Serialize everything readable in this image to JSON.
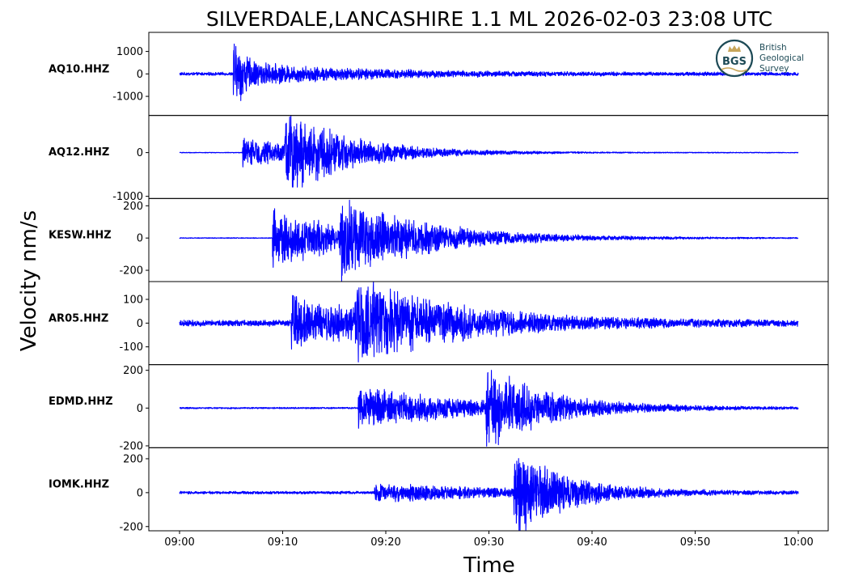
{
  "chart_data": {
    "type": "line",
    "title": "SILVERDALE,LANCASHIRE 1.1 ML   2026-02-03 23:08 UTC",
    "xlabel": "Time",
    "ylabel": "Velocity nm/s",
    "x_ticks": [
      "09:00",
      "09:10",
      "09:20",
      "09:30",
      "09:40",
      "09:50",
      "10:00"
    ],
    "x_range_minutes": [
      0,
      60
    ],
    "line_color": "#0000ff",
    "logo": {
      "abbr": "BGS",
      "lines": [
        "British",
        "Geological",
        "Survey"
      ],
      "color": "#1d4a56",
      "accent": "#c8a65a"
    },
    "panels": [
      {
        "station": "AQ10.HHZ",
        "ylim": [
          -1850,
          1850
        ],
        "yticks": [
          {
            "v": 1000,
            "label": "1000"
          },
          {
            "v": 0,
            "label": "0"
          },
          {
            "v": -1000,
            "label": "-1000"
          }
        ],
        "noise": 70,
        "arrivals": [
          {
            "t": 5.2,
            "amp": 1700,
            "decay": 0.8
          },
          {
            "t": 5.7,
            "amp": 480,
            "decay": 12
          }
        ]
      },
      {
        "station": "AQ12.HHZ",
        "ylim": [
          -1050,
          850
        ],
        "yticks": [
          {
            "v": 0,
            "label": "0"
          },
          {
            "v": -1000,
            "label": "-1000"
          }
        ],
        "noise": 8,
        "arrivals": [
          {
            "t": 6.1,
            "amp": 320,
            "decay": 8
          },
          {
            "t": 10.2,
            "amp": 820,
            "decay": 6
          }
        ]
      },
      {
        "station": "KESW.HHZ",
        "ylim": [
          -270,
          245
        ],
        "yticks": [
          {
            "v": 200,
            "label": "200"
          },
          {
            "v": 0,
            "label": "0"
          },
          {
            "v": -200,
            "label": "-200"
          }
        ],
        "noise": 2.5,
        "arrivals": [
          {
            "t": 9.0,
            "amp": 200,
            "decay": 7
          },
          {
            "t": 15.5,
            "amp": 180,
            "decay": 9
          }
        ]
      },
      {
        "station": "AR05.HHZ",
        "ylim": [
          -175,
          175
        ],
        "yticks": [
          {
            "v": 100,
            "label": "100"
          },
          {
            "v": 0,
            "label": "0"
          },
          {
            "v": -100,
            "label": "-100"
          }
        ],
        "noise": 13,
        "arrivals": [
          {
            "t": 10.8,
            "amp": 110,
            "decay": 9
          },
          {
            "t": 17.0,
            "amp": 140,
            "decay": 9
          }
        ]
      },
      {
        "station": "EDMD.HHZ",
        "ylim": [
          -210,
          230
        ],
        "yticks": [
          {
            "v": 200,
            "label": "200"
          },
          {
            "v": 0,
            "label": "0"
          },
          {
            "v": -200,
            "label": "-200"
          }
        ],
        "noise": 4,
        "arrivals": [
          {
            "t": 17.3,
            "amp": 110,
            "decay": 12
          },
          {
            "t": 29.7,
            "amp": 200,
            "decay": 5
          }
        ]
      },
      {
        "station": "IOMK.HHZ",
        "ylim": [
          -225,
          265
        ],
        "yticks": [
          {
            "v": 200,
            "label": "200"
          },
          {
            "v": 0,
            "label": "0"
          },
          {
            "v": -200,
            "label": "-200"
          }
        ],
        "noise": 8,
        "arrivals": [
          {
            "t": 18.9,
            "amp": 55,
            "decay": 12
          },
          {
            "t": 32.4,
            "amp": 240,
            "decay": 5
          }
        ]
      }
    ]
  }
}
